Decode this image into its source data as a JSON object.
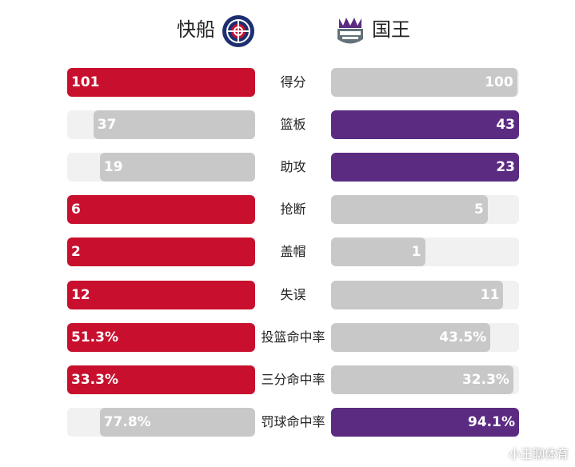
{
  "header": {
    "home_team": "快船",
    "away_team": "国王",
    "home_logo_icon": "clippers-logo-icon",
    "away_logo_icon": "kings-logo-icon"
  },
  "colors": {
    "home_win": "#c8102e",
    "away_win": "#5b2b82",
    "lose": "#c8c8c8",
    "track": "#f1f1f1"
  },
  "chart_data": {
    "type": "bar",
    "categories": [
      "得分",
      "篮板",
      "助攻",
      "抢断",
      "盖帽",
      "失误",
      "投篮命中率",
      "三分命中率",
      "罚球命中率"
    ],
    "series": [
      {
        "name": "快船",
        "values": [
          101,
          37,
          19,
          6,
          2,
          12,
          51.3,
          33.3,
          77.8
        ],
        "labels": [
          "101",
          "37",
          "19",
          "6",
          "2",
          "12",
          "51.3%",
          "33.3%",
          "77.8%"
        ]
      },
      {
        "name": "国王",
        "values": [
          100,
          43,
          23,
          5,
          1,
          11,
          43.5,
          32.3,
          94.1
        ],
        "labels": [
          "100",
          "43",
          "23",
          "5",
          "1",
          "11",
          "43.5%",
          "32.3%",
          "94.1%"
        ]
      }
    ]
  },
  "watermark": "小王聊体育"
}
